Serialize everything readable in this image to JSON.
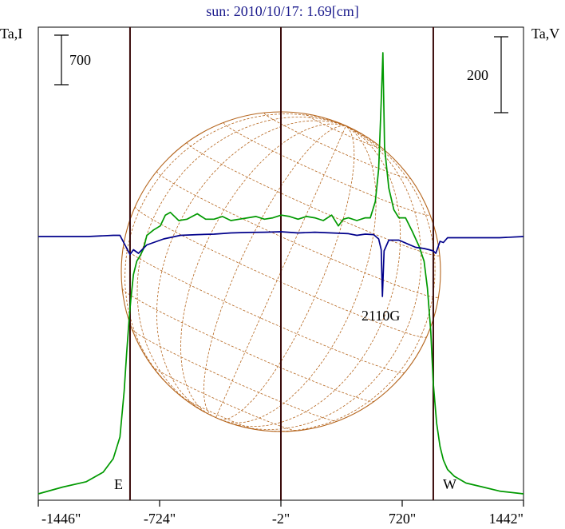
{
  "chart_data": {
    "type": "line",
    "title": "sun: 2010/10/17: 1.69[cm]",
    "y_left_label": "Ta,I",
    "y_right_label": "Ta,V",
    "left_scale_bar": "700",
    "right_scale_bar": "200",
    "x_ticks": [
      {
        "value": -1446,
        "label": "-1446\""
      },
      {
        "value": -724,
        "label": "-724\""
      },
      {
        "value": -2,
        "label": "-2\""
      },
      {
        "value": 720,
        "label": "720\""
      },
      {
        "value": 1442,
        "label": "1442\""
      }
    ],
    "xlim": [
      -1446,
      1442
    ],
    "limb_markers": [
      {
        "label": "E",
        "x": -900
      },
      {
        "label": "W",
        "x": 905
      }
    ],
    "center_x": -2,
    "annotation": "2110G",
    "annotation_x": 600,
    "series": [
      {
        "color": "#009900",
        "x": [
          -1446,
          -1300,
          -1160,
          -1060,
          -1000,
          -960,
          -935,
          -920,
          -905,
          -895,
          -880,
          -860,
          -840,
          -820,
          -800,
          -760,
          -720,
          -690,
          -660,
          -610,
          -560,
          -530,
          -500,
          -450,
          -400,
          -350,
          -300,
          -250,
          -200,
          -150,
          -100,
          -50,
          0,
          50,
          100,
          150,
          200,
          250,
          300,
          340,
          370,
          400,
          450,
          500,
          530,
          560,
          580,
          595,
          605,
          615,
          640,
          670,
          700,
          740,
          780,
          820,
          850,
          870,
          890,
          905,
          925,
          945,
          965,
          990,
          1030,
          1100,
          1200,
          1300,
          1442
        ],
        "y": [
          0,
          25,
          45,
          80,
          130,
          210,
          380,
          520,
          650,
          720,
          810,
          860,
          880,
          905,
          955,
          975,
          990,
          1030,
          1040,
          1010,
          1015,
          1025,
          1035,
          1015,
          1015,
          1025,
          1010,
          1015,
          1020,
          1025,
          1015,
          1020,
          1030,
          1025,
          1015,
          1025,
          1020,
          1010,
          1030,
          990,
          1015,
          1020,
          1010,
          1020,
          1020,
          1080,
          1200,
          1450,
          1630,
          1280,
          1130,
          1050,
          1020,
          1020,
          970,
          915,
          860,
          760,
          600,
          410,
          260,
          175,
          125,
          90,
          65,
          40,
          25,
          10,
          0
        ]
      },
      {
        "color": "#00008b",
        "x": [
          -1446,
          -1300,
          -1150,
          -1000,
          -960,
          -930,
          -900,
          -880,
          -850,
          -800,
          -700,
          -600,
          -500,
          -400,
          -300,
          -200,
          -100,
          -2,
          100,
          200,
          300,
          400,
          450,
          500,
          550,
          580,
          595,
          602,
          612,
          640,
          700,
          800,
          850,
          880,
          905,
          920,
          945,
          965,
          990,
          1100,
          1200,
          1300,
          1442
        ],
        "y": [
          0,
          0,
          0,
          5,
          5,
          -35,
          -75,
          -55,
          -70,
          -35,
          -10,
          5,
          8,
          10,
          15,
          17,
          18,
          20,
          15,
          18,
          15,
          12,
          5,
          10,
          8,
          -10,
          -55,
          -250,
          -60,
          -15,
          -15,
          -45,
          -50,
          -55,
          -60,
          -70,
          -20,
          -25,
          -5,
          -5,
          -5,
          -5,
          0
        ]
      }
    ],
    "disk_color": "#b5651d"
  }
}
